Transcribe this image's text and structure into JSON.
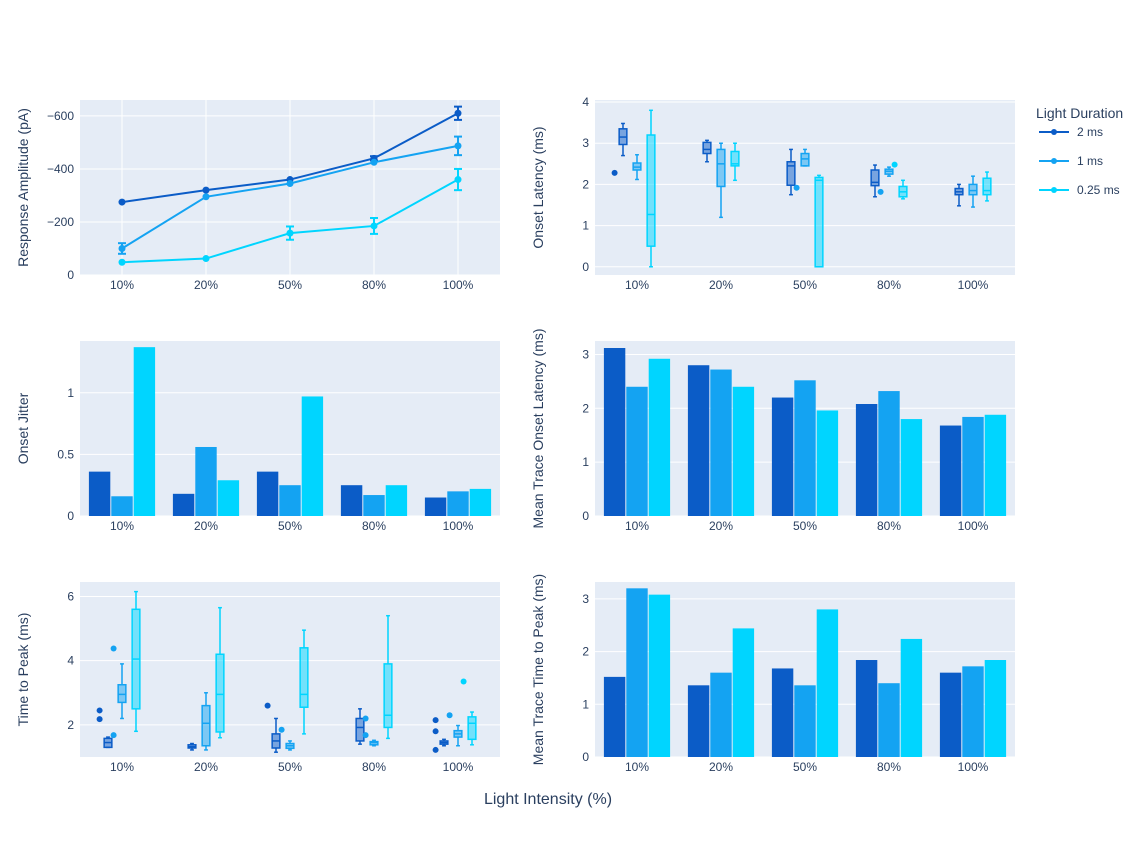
{
  "figure": {
    "xlabel": "Light Intensity (%)",
    "legend_title": "Light Duration",
    "legend_placement": "right"
  },
  "colors": {
    "plot_bg": "#e5ecf6",
    "grid": "#ffffff",
    "text": "#2a3f5f"
  },
  "series": [
    {
      "name": "2 ms",
      "color": "#0b5cc7"
    },
    {
      "name": "1 ms",
      "color": "#14a3f2"
    },
    {
      "name": "0.25 ms",
      "color": "#00d5ff"
    }
  ],
  "chart_data": [
    {
      "id": "amplitude",
      "type": "line",
      "ylabel": "Response Amplitude (pA)",
      "categories": [
        "10%",
        "20%",
        "50%",
        "80%",
        "100%"
      ],
      "y_reversed": true,
      "ylim": [
        0,
        -660
      ],
      "yticks": [
        0,
        -200,
        -400,
        -600
      ],
      "yticklabels": [
        "0",
        "−200",
        "−400",
        "−600"
      ],
      "grid": true,
      "series": [
        {
          "name": "2 ms",
          "values": [
            -275,
            -320,
            -360,
            -440,
            -610
          ],
          "errors": [
            0,
            0,
            0,
            8,
            25
          ]
        },
        {
          "name": "1 ms",
          "values": [
            -100,
            -295,
            -345,
            -425,
            -487
          ],
          "errors": [
            20,
            0,
            0,
            0,
            35
          ]
        },
        {
          "name": "0.25 ms",
          "values": [
            -48,
            -62,
            -158,
            -185,
            -360
          ],
          "errors": [
            0,
            0,
            25,
            30,
            40
          ]
        }
      ]
    },
    {
      "id": "onset_latency",
      "type": "box",
      "ylabel": "Onset Latency (ms)",
      "categories": [
        "10%",
        "20%",
        "50%",
        "80%",
        "100%"
      ],
      "ylim": [
        -0.2,
        4.05
      ],
      "yticks": [
        0,
        1,
        2,
        3,
        4
      ],
      "yticklabels": [
        "0",
        "1",
        "2",
        "3",
        "4"
      ],
      "grid": true,
      "series": [
        {
          "name": "2 ms",
          "boxes": [
            {
              "low": 2.7,
              "q1": 2.97,
              "median": 3.15,
              "q3": 3.35,
              "high": 3.48,
              "outliers": [
                2.28
              ]
            },
            {
              "low": 2.55,
              "q1": 2.75,
              "median": 2.85,
              "q3": 3.02,
              "high": 3.07,
              "outliers": []
            },
            {
              "low": 1.75,
              "q1": 1.98,
              "median": 2.45,
              "q3": 2.55,
              "high": 2.85,
              "outliers": []
            },
            {
              "low": 1.7,
              "q1": 1.97,
              "median": 2.05,
              "q3": 2.35,
              "high": 2.47,
              "outliers": []
            },
            {
              "low": 1.48,
              "q1": 1.75,
              "median": 1.82,
              "q3": 1.9,
              "high": 2.0,
              "outliers": []
            }
          ]
        },
        {
          "name": "1 ms",
          "boxes": [
            {
              "low": 2.12,
              "q1": 2.35,
              "median": 2.42,
              "q3": 2.52,
              "high": 2.72,
              "outliers": []
            },
            {
              "low": 1.2,
              "q1": 1.95,
              "median": 2.5,
              "q3": 2.85,
              "high": 3.0,
              "outliers": []
            },
            {
              "low": 2.45,
              "q1": 2.45,
              "median": 2.62,
              "q3": 2.75,
              "high": 2.85,
              "outliers": [
                1.92
              ]
            },
            {
              "low": 2.2,
              "q1": 2.25,
              "median": 2.32,
              "q3": 2.37,
              "high": 2.42,
              "outliers": [
                1.82
              ]
            },
            {
              "low": 1.45,
              "q1": 1.75,
              "median": 1.85,
              "q3": 2.0,
              "high": 2.2,
              "outliers": []
            }
          ]
        },
        {
          "name": "0.25 ms",
          "boxes": [
            {
              "low": 0.0,
              "q1": 0.5,
              "median": 1.27,
              "q3": 3.2,
              "high": 3.8,
              "outliers": []
            },
            {
              "low": 2.1,
              "q1": 2.45,
              "median": 2.5,
              "q3": 2.8,
              "high": 3.0,
              "outliers": []
            },
            {
              "low": 0.0,
              "q1": 0.0,
              "median": 2.1,
              "q3": 2.17,
              "high": 2.22,
              "outliers": []
            },
            {
              "low": 1.65,
              "q1": 1.7,
              "median": 1.82,
              "q3": 1.95,
              "high": 2.1,
              "outliers": [
                2.48
              ]
            },
            {
              "low": 1.6,
              "q1": 1.75,
              "median": 1.85,
              "q3": 2.15,
              "high": 2.3,
              "outliers": []
            }
          ]
        }
      ]
    },
    {
      "id": "onset_jitter",
      "type": "bar",
      "ylabel": "Onset Jitter",
      "categories": [
        "10%",
        "20%",
        "50%",
        "80%",
        "100%"
      ],
      "ylim": [
        0,
        1.42
      ],
      "yticks": [
        0,
        0.5,
        1
      ],
      "yticklabels": [
        "0",
        "0.5",
        "1"
      ],
      "grid": true,
      "series": [
        {
          "name": "2 ms",
          "values": [
            0.36,
            0.18,
            0.36,
            0.25,
            0.15
          ]
        },
        {
          "name": "1 ms",
          "values": [
            0.16,
            0.56,
            0.25,
            0.17,
            0.2
          ]
        },
        {
          "name": "0.25 ms",
          "values": [
            1.37,
            0.29,
            0.97,
            0.25,
            0.22
          ]
        }
      ]
    },
    {
      "id": "mean_trace_onset",
      "type": "bar",
      "ylabel": "Mean Trace Onset Latency (ms)",
      "categories": [
        "10%",
        "20%",
        "50%",
        "80%",
        "100%"
      ],
      "ylim": [
        0,
        3.25
      ],
      "yticks": [
        0,
        1,
        2,
        3
      ],
      "yticklabels": [
        "0",
        "1",
        "2",
        "3"
      ],
      "grid": true,
      "series": [
        {
          "name": "2 ms",
          "values": [
            3.12,
            2.8,
            2.2,
            2.08,
            1.68
          ]
        },
        {
          "name": "1 ms",
          "values": [
            2.4,
            2.72,
            2.52,
            2.32,
            1.84
          ]
        },
        {
          "name": "0.25 ms",
          "values": [
            2.92,
            2.4,
            1.96,
            1.8,
            1.88
          ]
        }
      ]
    },
    {
      "id": "time_to_peak",
      "type": "box",
      "ylabel": "Time to Peak (ms)",
      "categories": [
        "10%",
        "20%",
        "50%",
        "80%",
        "100%"
      ],
      "ylim": [
        1.0,
        6.45
      ],
      "yticks": [
        2,
        4,
        6
      ],
      "yticklabels": [
        "2",
        "4",
        "6"
      ],
      "grid": true,
      "series": [
        {
          "name": "2 ms",
          "boxes": [
            {
              "low": 1.3,
              "q1": 1.3,
              "median": 1.45,
              "q3": 1.58,
              "high": 1.62,
              "outliers": [
                2.45,
                2.18
              ]
            },
            {
              "low": 1.22,
              "q1": 1.28,
              "median": 1.32,
              "q3": 1.38,
              "high": 1.42,
              "outliers": []
            },
            {
              "low": 1.15,
              "q1": 1.28,
              "median": 1.5,
              "q3": 1.72,
              "high": 2.2,
              "outliers": [
                2.6
              ]
            },
            {
              "low": 1.4,
              "q1": 1.5,
              "median": 1.92,
              "q3": 2.2,
              "high": 2.5,
              "outliers": []
            },
            {
              "low": 1.35,
              "q1": 1.4,
              "median": 1.45,
              "q3": 1.5,
              "high": 1.55,
              "outliers": [
                2.15,
                1.8,
                1.22
              ]
            }
          ]
        },
        {
          "name": "1 ms",
          "boxes": [
            {
              "low": 2.2,
              "q1": 2.7,
              "median": 2.95,
              "q3": 3.25,
              "high": 3.9,
              "outliers": [
                4.38,
                1.68
              ]
            },
            {
              "low": 1.22,
              "q1": 1.35,
              "median": 2.05,
              "q3": 2.6,
              "high": 3.0,
              "outliers": []
            },
            {
              "low": 1.22,
              "q1": 1.27,
              "median": 1.35,
              "q3": 1.42,
              "high": 1.5,
              "outliers": [
                1.85
              ]
            },
            {
              "low": 1.35,
              "q1": 1.38,
              "median": 1.45,
              "q3": 1.48,
              "high": 1.52,
              "outliers": [
                2.2,
                1.68
              ]
            },
            {
              "low": 1.35,
              "q1": 1.62,
              "median": 1.72,
              "q3": 1.82,
              "high": 1.98,
              "outliers": [
                2.3
              ]
            }
          ]
        },
        {
          "name": "0.25 ms",
          "boxes": [
            {
              "low": 1.8,
              "q1": 2.5,
              "median": 4.05,
              "q3": 5.6,
              "high": 6.15,
              "outliers": []
            },
            {
              "low": 1.6,
              "q1": 1.78,
              "median": 2.95,
              "q3": 4.2,
              "high": 5.65,
              "outliers": []
            },
            {
              "low": 1.72,
              "q1": 2.55,
              "median": 2.95,
              "q3": 4.4,
              "high": 4.95,
              "outliers": []
            },
            {
              "low": 1.58,
              "q1": 1.92,
              "median": 2.3,
              "q3": 3.9,
              "high": 5.4,
              "outliers": []
            },
            {
              "low": 1.38,
              "q1": 1.55,
              "median": 2.05,
              "q3": 2.25,
              "high": 2.4,
              "outliers": [
                3.35
              ]
            }
          ]
        }
      ]
    },
    {
      "id": "mean_trace_ttp",
      "type": "bar",
      "ylabel": "Mean Trace Time to Peak (ms)",
      "categories": [
        "10%",
        "20%",
        "50%",
        "80%",
        "100%"
      ],
      "ylim": [
        0,
        3.32
      ],
      "yticks": [
        0,
        1,
        2,
        3
      ],
      "yticklabels": [
        "0",
        "1",
        "2",
        "3"
      ],
      "grid": true,
      "series": [
        {
          "name": "2 ms",
          "values": [
            1.52,
            1.36,
            1.68,
            1.84,
            1.6
          ]
        },
        {
          "name": "1 ms",
          "values": [
            3.2,
            1.6,
            1.36,
            1.4,
            1.72
          ]
        },
        {
          "name": "0.25 ms",
          "values": [
            3.08,
            2.44,
            2.8,
            2.24,
            1.84
          ]
        }
      ]
    }
  ]
}
